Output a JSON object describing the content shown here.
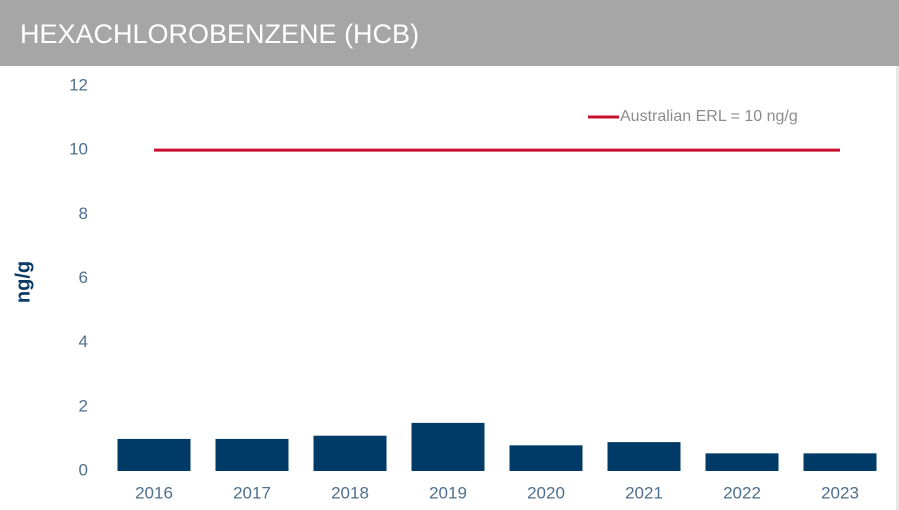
{
  "chart_data": {
    "type": "bar",
    "title": "HEXACHLOROBENZENE (HCB)",
    "ylabel": "ng/g",
    "categories": [
      "2016",
      "2017",
      "2018",
      "2019",
      "2020",
      "2021",
      "2022",
      "2023"
    ],
    "series": [
      {
        "type": "bar",
        "color": "#003a66",
        "values": [
          1.0,
          1.0,
          1.1,
          1.5,
          0.8,
          0.9,
          0.55,
          0.55
        ]
      },
      {
        "type": "line",
        "name": "Australian ERL = 10 ng/g",
        "color": "#c8102e",
        "values": [
          10,
          10,
          10,
          10,
          10,
          10,
          10,
          10
        ]
      }
    ],
    "ylim": [
      0,
      12
    ],
    "yticks": [
      0,
      2,
      4,
      6,
      8,
      10,
      12
    ],
    "grid": false,
    "legend": "top-right"
  }
}
